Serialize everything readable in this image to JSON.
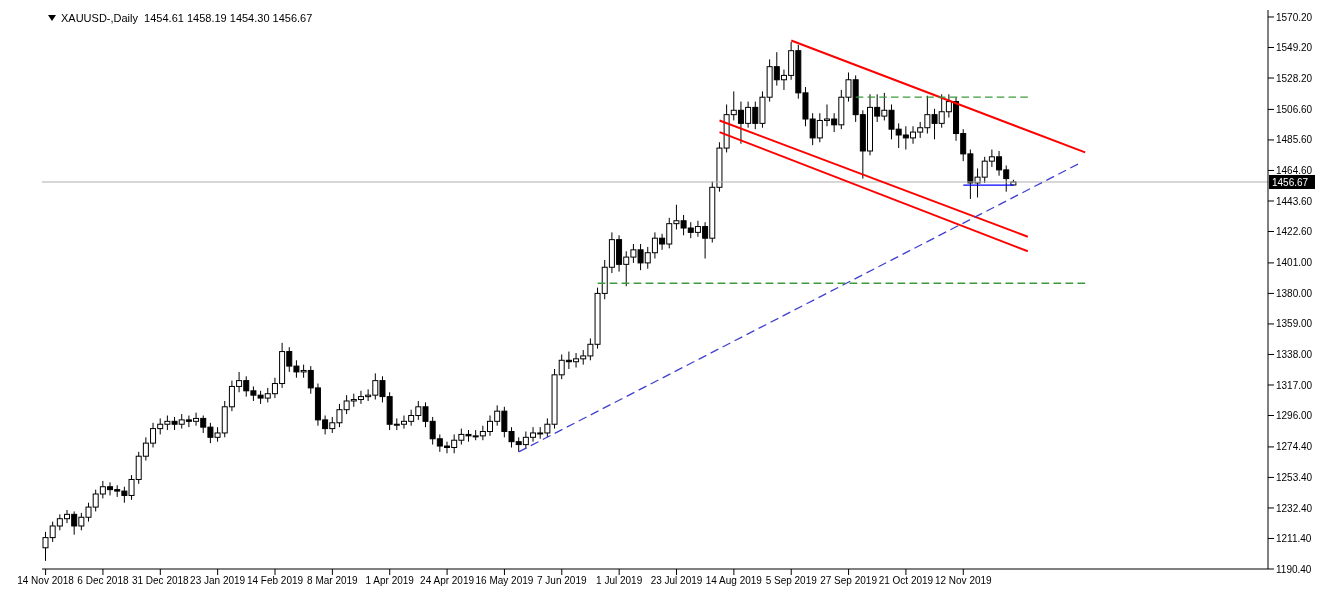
{
  "chart_data": {
    "type": "candlestick",
    "title": "XAUUSD-,Daily  1454.61 1458.19 1454.30 1456.67",
    "color": "#000000",
    "categories": [
      "14 Nov 2018",
      null,
      null,
      null,
      null,
      null,
      null,
      null,
      "6 Dec 2018",
      null,
      null,
      null,
      null,
      null,
      null,
      null,
      "31 Dec 2018",
      null,
      null,
      null,
      null,
      null,
      null,
      null,
      "23 Jan 2019",
      null,
      null,
      null,
      null,
      null,
      null,
      null,
      "14 Feb 2019",
      null,
      null,
      null,
      null,
      null,
      null,
      null,
      "8 Mar 2019",
      null,
      null,
      null,
      null,
      null,
      null,
      null,
      "1 Apr 2019",
      null,
      null,
      null,
      null,
      null,
      null,
      null,
      "24 Apr 2019",
      null,
      null,
      null,
      null,
      null,
      null,
      null,
      "16 May 2019",
      null,
      null,
      null,
      null,
      null,
      null,
      null,
      "7 Jun 2019",
      null,
      null,
      null,
      null,
      null,
      null,
      null,
      "1 Jul 2019",
      null,
      null,
      null,
      null,
      null,
      null,
      null,
      "23 Jul 2019",
      null,
      null,
      null,
      null,
      null,
      null,
      null,
      "14 Aug 2019",
      null,
      null,
      null,
      null,
      null,
      null,
      null,
      "5 Sep 2019",
      null,
      null,
      null,
      null,
      null,
      null,
      null,
      "27 Sep 2019",
      null,
      null,
      null,
      null,
      null,
      null,
      null,
      "21 Oct 2019",
      null,
      null,
      null,
      null,
      null,
      null,
      null,
      "12 Nov 2019",
      null,
      null,
      null,
      null,
      null,
      null,
      null,
      null,
      null,
      null,
      null,
      null,
      null,
      null,
      null,
      null,
      null,
      null,
      null,
      null,
      null,
      null,
      null,
      null,
      null,
      null,
      null,
      null,
      null,
      null,
      null,
      null,
      null,
      null,
      null,
      null,
      null,
      null,
      null,
      null,
      null,
      null
    ],
    "ohlc": [
      [
        1205,
        1216,
        1196,
        1212
      ],
      [
        1212,
        1223,
        1209,
        1220
      ],
      [
        1220,
        1228,
        1217,
        1225
      ],
      [
        1225,
        1231,
        1222,
        1228
      ],
      [
        1228,
        1230,
        1214,
        1220
      ],
      [
        1220,
        1229,
        1217,
        1226
      ],
      [
        1226,
        1236,
        1223,
        1233
      ],
      [
        1233,
        1245,
        1230,
        1242
      ],
      [
        1242,
        1251,
        1239,
        1247
      ],
      [
        1247,
        1250,
        1241,
        1245
      ],
      [
        1245,
        1248,
        1240,
        1244
      ],
      [
        1244,
        1247,
        1236,
        1241
      ],
      [
        1241,
        1255,
        1238,
        1252
      ],
      [
        1252,
        1271,
        1249,
        1268
      ],
      [
        1268,
        1281,
        1265,
        1277
      ],
      [
        1277,
        1291,
        1274,
        1287
      ],
      [
        1287,
        1294,
        1283,
        1290
      ],
      [
        1290,
        1296,
        1286,
        1292
      ],
      [
        1292,
        1295,
        1286,
        1290
      ],
      [
        1290,
        1297,
        1287,
        1293
      ],
      [
        1293,
        1296,
        1288,
        1292
      ],
      [
        1292,
        1298,
        1289,
        1294
      ],
      [
        1294,
        1296,
        1284,
        1288
      ],
      [
        1288,
        1291,
        1277,
        1281
      ],
      [
        1281,
        1288,
        1278,
        1284
      ],
      [
        1284,
        1306,
        1281,
        1302
      ],
      [
        1302,
        1320,
        1299,
        1316
      ],
      [
        1316,
        1326,
        1312,
        1320
      ],
      [
        1320,
        1323,
        1309,
        1313
      ],
      [
        1313,
        1316,
        1306,
        1310
      ],
      [
        1310,
        1313,
        1304,
        1308
      ],
      [
        1308,
        1315,
        1305,
        1311
      ],
      [
        1311,
        1322,
        1308,
        1318
      ],
      [
        1318,
        1346,
        1315,
        1340
      ],
      [
        1340,
        1343,
        1326,
        1330
      ],
      [
        1330,
        1334,
        1322,
        1326
      ],
      [
        1326,
        1331,
        1322,
        1327
      ],
      [
        1327,
        1330,
        1311,
        1315
      ],
      [
        1315,
        1318,
        1289,
        1293
      ],
      [
        1293,
        1296,
        1283,
        1287
      ],
      [
        1287,
        1295,
        1284,
        1291
      ],
      [
        1291,
        1304,
        1288,
        1300
      ],
      [
        1300,
        1310,
        1297,
        1306
      ],
      [
        1306,
        1311,
        1302,
        1307
      ],
      [
        1307,
        1313,
        1304,
        1309
      ],
      [
        1309,
        1314,
        1306,
        1310
      ],
      [
        1310,
        1325,
        1307,
        1320
      ],
      [
        1320,
        1323,
        1305,
        1309
      ],
      [
        1309,
        1312,
        1286,
        1290
      ],
      [
        1290,
        1294,
        1286,
        1290
      ],
      [
        1290,
        1296,
        1287,
        1292
      ],
      [
        1292,
        1300,
        1289,
        1296
      ],
      [
        1296,
        1306,
        1293,
        1302
      ],
      [
        1302,
        1305,
        1288,
        1292
      ],
      [
        1292,
        1295,
        1276,
        1280
      ],
      [
        1280,
        1283,
        1271,
        1275
      ],
      [
        1275,
        1278,
        1270,
        1274
      ],
      [
        1274,
        1283,
        1270,
        1279
      ],
      [
        1279,
        1287,
        1276,
        1283
      ],
      [
        1283,
        1286,
        1278,
        1282
      ],
      [
        1282,
        1286,
        1279,
        1282
      ],
      [
        1282,
        1289,
        1279,
        1285
      ],
      [
        1285,
        1296,
        1282,
        1292
      ],
      [
        1292,
        1303,
        1289,
        1299
      ],
      [
        1299,
        1302,
        1281,
        1285
      ],
      [
        1285,
        1288,
        1274,
        1278
      ],
      [
        1278,
        1281,
        1271,
        1276
      ],
      [
        1276,
        1285,
        1273,
        1281
      ],
      [
        1281,
        1288,
        1278,
        1284
      ],
      [
        1284,
        1288,
        1280,
        1284
      ],
      [
        1284,
        1294,
        1281,
        1290
      ],
      [
        1290,
        1328,
        1287,
        1324
      ],
      [
        1324,
        1338,
        1321,
        1334
      ],
      [
        1334,
        1340,
        1328,
        1333
      ],
      [
        1333,
        1339,
        1329,
        1335
      ],
      [
        1335,
        1341,
        1331,
        1337
      ],
      [
        1337,
        1349,
        1334,
        1345
      ],
      [
        1345,
        1384,
        1342,
        1380
      ],
      [
        1380,
        1403,
        1376,
        1398
      ],
      [
        1398,
        1422,
        1394,
        1417
      ],
      [
        1417,
        1420,
        1395,
        1400
      ],
      [
        1400,
        1409,
        1385,
        1405
      ],
      [
        1405,
        1414,
        1401,
        1410
      ],
      [
        1410,
        1414,
        1396,
        1401
      ],
      [
        1401,
        1412,
        1397,
        1408
      ],
      [
        1408,
        1422,
        1404,
        1418
      ],
      [
        1418,
        1421,
        1410,
        1414
      ],
      [
        1414,
        1432,
        1411,
        1428
      ],
      [
        1428,
        1441,
        1424,
        1430
      ],
      [
        1430,
        1434,
        1420,
        1425
      ],
      [
        1425,
        1429,
        1418,
        1422
      ],
      [
        1422,
        1430,
        1419,
        1426
      ],
      [
        1426,
        1429,
        1404,
        1418
      ],
      [
        1418,
        1457,
        1415,
        1453
      ],
      [
        1453,
        1484,
        1450,
        1480
      ],
      [
        1480,
        1510,
        1477,
        1503
      ],
      [
        1503,
        1519,
        1499,
        1506
      ],
      [
        1506,
        1512,
        1483,
        1497
      ],
      [
        1497,
        1512,
        1494,
        1508
      ],
      [
        1508,
        1512,
        1493,
        1497
      ],
      [
        1497,
        1519,
        1494,
        1515
      ],
      [
        1515,
        1541,
        1512,
        1536
      ],
      [
        1536,
        1546,
        1523,
        1527
      ],
      [
        1527,
        1534,
        1520,
        1530
      ],
      [
        1530,
        1553,
        1527,
        1547
      ],
      [
        1547,
        1551,
        1514,
        1518
      ],
      [
        1518,
        1522,
        1495,
        1500
      ],
      [
        1500,
        1504,
        1482,
        1487
      ],
      [
        1487,
        1504,
        1484,
        1499
      ],
      [
        1499,
        1510,
        1495,
        1500
      ],
      [
        1500,
        1504,
        1491,
        1496
      ],
      [
        1496,
        1520,
        1493,
        1515
      ],
      [
        1515,
        1532,
        1512,
        1527
      ],
      [
        1527,
        1530,
        1498,
        1503
      ],
      [
        1503,
        1506,
        1459,
        1478
      ],
      [
        1478,
        1517,
        1475,
        1508
      ],
      [
        1508,
        1517,
        1498,
        1502
      ],
      [
        1502,
        1518,
        1499,
        1506
      ],
      [
        1506,
        1510,
        1486,
        1493
      ],
      [
        1493,
        1497,
        1480,
        1489
      ],
      [
        1489,
        1495,
        1479,
        1487
      ],
      [
        1487,
        1495,
        1483,
        1491
      ],
      [
        1491,
        1498,
        1487,
        1494
      ],
      [
        1494,
        1516,
        1490,
        1503
      ],
      [
        1503,
        1507,
        1486,
        1497
      ],
      [
        1497,
        1517,
        1494,
        1505
      ],
      [
        1505,
        1517,
        1501,
        1512
      ],
      [
        1512,
        1515,
        1485,
        1490
      ],
      [
        1490,
        1493,
        1471,
        1476
      ],
      [
        1476,
        1479,
        1445,
        1456
      ],
      [
        1456,
        1466,
        1446,
        1460
      ],
      [
        1460,
        1474,
        1456,
        1471
      ],
      [
        1471,
        1479,
        1467,
        1474
      ],
      [
        1474,
        1478,
        1461,
        1465
      ],
      [
        1465,
        1468,
        1450,
        1459
      ],
      [
        1454.61,
        1458.19,
        1454.3,
        1456.67
      ],
      null,
      null,
      null,
      null,
      null,
      null,
      null,
      null,
      null,
      null,
      null,
      null,
      null,
      null,
      null,
      null,
      null,
      null,
      null,
      null,
      null,
      null,
      null,
      null,
      null,
      null,
      null,
      null,
      null,
      null,
      null,
      null,
      null,
      null,
      null
    ],
    "series": [
      {
        "type": "line",
        "color": "#ff0000",
        "line_style": "solid",
        "values": [
          null,
          null,
          null,
          null,
          null,
          null,
          null,
          null,
          null,
          null,
          null,
          null,
          null,
          null,
          null,
          null,
          null,
          null,
          null,
          null,
          null,
          null,
          null,
          null,
          null,
          null,
          null,
          null,
          null,
          null,
          null,
          null,
          null,
          null,
          null,
          null,
          null,
          null,
          null,
          null,
          null,
          null,
          null,
          null,
          null,
          null,
          null,
          null,
          null,
          null,
          null,
          null,
          null,
          null,
          null,
          null,
          null,
          null,
          null,
          null,
          null,
          null,
          null,
          null,
          null,
          null,
          null,
          null,
          null,
          null,
          null,
          null,
          null,
          null,
          null,
          null,
          null,
          null,
          null,
          null,
          null,
          null,
          null,
          null,
          null,
          null,
          null,
          null,
          null,
          null,
          null,
          null,
          null,
          null,
          null,
          null,
          null,
          null,
          null,
          null,
          null,
          null,
          null,
          null,
          1554,
          null,
          null,
          null,
          null,
          null,
          null,
          null,
          null,
          null,
          null,
          null,
          null,
          null,
          null,
          null,
          null,
          null,
          null,
          null,
          null,
          null,
          null,
          null,
          null,
          null,
          null,
          null,
          null,
          null,
          null,
          null,
          null,
          null,
          null,
          null,
          null,
          null,
          null,
          null,
          null,
          1477,
          null,
          null,
          null,
          null,
          null,
          null,
          null,
          null,
          null,
          null,
          null,
          null,
          null,
          null,
          null,
          null,
          null,
          null,
          null,
          null,
          null,
          null,
          null,
          null,
          null
        ]
      },
      {
        "type": "line",
        "color": "#ff0000",
        "line_style": "solid",
        "values": [
          null,
          null,
          null,
          null,
          null,
          null,
          null,
          null,
          null,
          null,
          null,
          null,
          null,
          null,
          null,
          null,
          null,
          null,
          null,
          null,
          null,
          null,
          null,
          null,
          null,
          null,
          null,
          null,
          null,
          null,
          null,
          null,
          null,
          null,
          null,
          null,
          null,
          null,
          null,
          null,
          null,
          null,
          null,
          null,
          null,
          null,
          null,
          null,
          null,
          null,
          null,
          null,
          null,
          null,
          null,
          null,
          null,
          null,
          null,
          null,
          null,
          null,
          null,
          null,
          null,
          null,
          null,
          null,
          null,
          null,
          null,
          null,
          null,
          null,
          null,
          null,
          null,
          null,
          null,
          null,
          null,
          null,
          null,
          null,
          null,
          null,
          null,
          null,
          null,
          null,
          null,
          null,
          null,
          null,
          1499,
          null,
          null,
          null,
          null,
          null,
          null,
          null,
          null,
          null,
          null,
          null,
          null,
          null,
          null,
          null,
          null,
          null,
          null,
          null,
          null,
          null,
          null,
          null,
          null,
          null,
          null,
          null,
          null,
          null,
          null,
          null,
          null,
          null,
          null,
          null,
          null,
          null,
          null,
          null,
          null,
          null,
          null,
          1419,
          null,
          null,
          null,
          null,
          null,
          null,
          null,
          null,
          null,
          null,
          null,
          null,
          null,
          null,
          null,
          null,
          null,
          null,
          null,
          null,
          null,
          null,
          null,
          null,
          null,
          null,
          null,
          null,
          null,
          null,
          null,
          null,
          null
        ]
      },
      {
        "type": "line",
        "color": "#ff0000",
        "line_style": "solid",
        "values": [
          null,
          null,
          null,
          null,
          null,
          null,
          null,
          null,
          null,
          null,
          null,
          null,
          null,
          null,
          null,
          null,
          null,
          null,
          null,
          null,
          null,
          null,
          null,
          null,
          null,
          null,
          null,
          null,
          null,
          null,
          null,
          null,
          null,
          null,
          null,
          null,
          null,
          null,
          null,
          null,
          null,
          null,
          null,
          null,
          null,
          null,
          null,
          null,
          null,
          null,
          null,
          null,
          null,
          null,
          null,
          null,
          null,
          null,
          null,
          null,
          null,
          null,
          null,
          null,
          null,
          null,
          null,
          null,
          null,
          null,
          null,
          null,
          null,
          null,
          null,
          null,
          null,
          null,
          null,
          null,
          null,
          null,
          null,
          null,
          null,
          null,
          null,
          null,
          null,
          null,
          null,
          null,
          null,
          null,
          1491,
          null,
          null,
          null,
          null,
          null,
          null,
          null,
          null,
          null,
          null,
          null,
          null,
          null,
          null,
          null,
          null,
          null,
          null,
          null,
          null,
          null,
          null,
          null,
          null,
          null,
          null,
          null,
          null,
          null,
          null,
          null,
          null,
          null,
          null,
          null,
          null,
          null,
          null,
          null,
          null,
          null,
          null,
          1409,
          null,
          null,
          null,
          null,
          null,
          null,
          null,
          null,
          null,
          null,
          null,
          null,
          null,
          null,
          null,
          null,
          null,
          null,
          null,
          null,
          null,
          null,
          null,
          null,
          null,
          null,
          null,
          null,
          null,
          null,
          null,
          null,
          null
        ]
      },
      {
        "type": "line",
        "color": "#4040d0",
        "line_style": "dashed",
        "values": [
          null,
          null,
          null,
          null,
          null,
          null,
          null,
          null,
          null,
          null,
          null,
          null,
          null,
          null,
          null,
          null,
          null,
          null,
          null,
          null,
          null,
          null,
          null,
          null,
          null,
          null,
          null,
          null,
          null,
          null,
          null,
          null,
          null,
          null,
          null,
          null,
          null,
          null,
          null,
          null,
          null,
          null,
          null,
          null,
          null,
          null,
          null,
          null,
          null,
          null,
          null,
          null,
          null,
          null,
          null,
          null,
          null,
          null,
          null,
          null,
          null,
          null,
          null,
          null,
          null,
          null,
          1271,
          null,
          null,
          null,
          null,
          null,
          null,
          null,
          null,
          null,
          null,
          null,
          null,
          null,
          null,
          null,
          null,
          null,
          null,
          null,
          null,
          null,
          null,
          null,
          null,
          null,
          null,
          null,
          null,
          null,
          null,
          null,
          null,
          null,
          null,
          null,
          null,
          null,
          null,
          null,
          null,
          null,
          null,
          null,
          null,
          null,
          null,
          null,
          null,
          null,
          null,
          null,
          null,
          null,
          null,
          null,
          null,
          null,
          null,
          null,
          null,
          null,
          null,
          null,
          null,
          null,
          null,
          null,
          null,
          null,
          null,
          null,
          null,
          null,
          null,
          null,
          null,
          null,
          1469,
          null,
          null,
          null,
          null,
          null,
          null,
          null,
          null,
          null,
          null,
          null,
          null,
          null,
          null,
          null,
          null,
          null,
          null,
          null,
          null,
          null,
          null,
          null,
          null,
          null,
          null
        ]
      },
      {
        "type": "line",
        "color": "#0000ff",
        "line_style": "solid",
        "values": [
          null,
          null,
          null,
          null,
          null,
          null,
          null,
          null,
          null,
          null,
          null,
          null,
          null,
          null,
          null,
          null,
          null,
          null,
          null,
          null,
          null,
          null,
          null,
          null,
          null,
          null,
          null,
          null,
          null,
          null,
          null,
          null,
          null,
          null,
          null,
          null,
          null,
          null,
          null,
          null,
          null,
          null,
          null,
          null,
          null,
          null,
          null,
          null,
          null,
          null,
          null,
          null,
          null,
          null,
          null,
          null,
          null,
          null,
          null,
          null,
          null,
          null,
          null,
          null,
          null,
          null,
          null,
          null,
          null,
          null,
          null,
          null,
          null,
          null,
          null,
          null,
          null,
          null,
          null,
          null,
          null,
          null,
          null,
          null,
          null,
          null,
          null,
          null,
          null,
          null,
          null,
          null,
          null,
          null,
          null,
          null,
          null,
          null,
          null,
          null,
          null,
          null,
          null,
          null,
          null,
          null,
          null,
          null,
          null,
          null,
          null,
          null,
          null,
          null,
          null,
          null,
          null,
          null,
          null,
          null,
          null,
          null,
          null,
          null,
          null,
          null,
          null,
          null,
          1454.5,
          null,
          null,
          null,
          null,
          null,
          null,
          1454.5,
          null,
          null,
          null,
          null,
          null,
          null,
          null,
          null,
          null,
          null,
          null,
          null,
          null,
          null,
          null,
          null,
          null,
          null,
          null,
          null,
          null,
          null,
          null,
          null,
          null,
          null,
          null,
          null,
          null,
          null,
          null,
          null,
          null,
          null,
          null
        ]
      },
      {
        "type": "line",
        "color": "#3c9a3c",
        "line_style": "dashed",
        "values": [
          null,
          null,
          null,
          null,
          null,
          null,
          null,
          null,
          null,
          null,
          null,
          null,
          null,
          null,
          null,
          null,
          null,
          null,
          null,
          null,
          null,
          null,
          null,
          null,
          null,
          null,
          null,
          null,
          null,
          null,
          null,
          null,
          null,
          null,
          null,
          null,
          null,
          null,
          null,
          null,
          null,
          null,
          null,
          null,
          null,
          null,
          null,
          null,
          null,
          null,
          null,
          null,
          null,
          null,
          null,
          null,
          null,
          null,
          null,
          null,
          null,
          null,
          null,
          null,
          null,
          null,
          null,
          null,
          null,
          null,
          null,
          null,
          null,
          null,
          null,
          null,
          null,
          null,
          null,
          null,
          null,
          null,
          null,
          null,
          null,
          null,
          null,
          null,
          null,
          null,
          null,
          null,
          null,
          null,
          null,
          null,
          null,
          null,
          null,
          null,
          null,
          null,
          null,
          null,
          null,
          null,
          null,
          null,
          null,
          null,
          null,
          null,
          null,
          1515,
          null,
          null,
          null,
          null,
          null,
          null,
          null,
          null,
          null,
          null,
          null,
          null,
          null,
          null,
          null,
          null,
          null,
          null,
          null,
          null,
          null,
          null,
          null,
          1515,
          null,
          null,
          null,
          null,
          null,
          null,
          null,
          null,
          null,
          null,
          null,
          null,
          null,
          null,
          null,
          null,
          null,
          null,
          null,
          null,
          null,
          null,
          null,
          null,
          null,
          null,
          null,
          null,
          null,
          null,
          null,
          null,
          null
        ]
      },
      {
        "type": "line",
        "color": "#3c9a3c",
        "line_style": "dashed",
        "values": [
          null,
          null,
          null,
          null,
          null,
          null,
          null,
          null,
          null,
          null,
          null,
          null,
          null,
          null,
          null,
          null,
          null,
          null,
          null,
          null,
          null,
          null,
          null,
          null,
          null,
          null,
          null,
          null,
          null,
          null,
          null,
          null,
          null,
          null,
          null,
          null,
          null,
          null,
          null,
          null,
          null,
          null,
          null,
          null,
          null,
          null,
          null,
          null,
          null,
          null,
          null,
          null,
          null,
          null,
          null,
          null,
          null,
          null,
          null,
          null,
          null,
          null,
          null,
          null,
          null,
          null,
          null,
          null,
          null,
          null,
          null,
          null,
          null,
          null,
          null,
          null,
          null,
          1387,
          null,
          null,
          null,
          null,
          null,
          null,
          null,
          null,
          null,
          null,
          null,
          null,
          null,
          null,
          null,
          null,
          null,
          null,
          null,
          null,
          null,
          null,
          null,
          null,
          null,
          null,
          null,
          null,
          null,
          null,
          null,
          null,
          null,
          null,
          null,
          null,
          null,
          null,
          null,
          null,
          null,
          null,
          null,
          null,
          null,
          null,
          null,
          null,
          null,
          null,
          null,
          null,
          null,
          null,
          null,
          null,
          null,
          null,
          null,
          null,
          null,
          null,
          null,
          null,
          null,
          null,
          null,
          1387,
          null,
          null,
          null,
          null,
          null,
          null,
          null,
          null,
          null,
          null,
          null,
          null,
          null,
          null,
          null,
          null,
          null,
          null,
          null,
          null,
          null,
          null,
          null,
          null,
          null
        ]
      }
    ],
    "ylim": [
      1190.4,
      1575
    ],
    "yticks": [
      {
        "value": 1190.4,
        "label": "1190.40"
      },
      {
        "value": 1211.4,
        "label": "1211.40"
      },
      {
        "value": 1232.4,
        "label": "1232.40"
      },
      {
        "value": 1253.4,
        "label": "1253.40"
      },
      {
        "value": 1274.4,
        "label": "1274.40"
      },
      {
        "value": 1296,
        "label": "1296.00"
      },
      {
        "value": 1317,
        "label": "1317.00"
      },
      {
        "value": 1338,
        "label": "1338.00"
      },
      {
        "value": 1359,
        "label": "1359.00"
      },
      {
        "value": 1380,
        "label": "1380.00"
      },
      {
        "value": 1401,
        "label": "1401.00"
      },
      {
        "value": 1422.6,
        "label": "1422.60"
      },
      {
        "value": 1443.6,
        "label": "1443.60"
      },
      {
        "value": 1464.6,
        "label": "1464.60"
      },
      {
        "value": 1485.6,
        "label": "1485.60"
      },
      {
        "value": 1506.6,
        "label": "1506.60"
      },
      {
        "value": 1528.2,
        "label": "1528.20"
      },
      {
        "value": 1549.2,
        "label": "1549.20"
      },
      {
        "value": 1570.2,
        "label": "1570.20"
      }
    ],
    "ref_lines": [
      {
        "axis": "y",
        "value": 1456.67,
        "label": "1456.67",
        "color": "#b0b0b0"
      }
    ]
  }
}
